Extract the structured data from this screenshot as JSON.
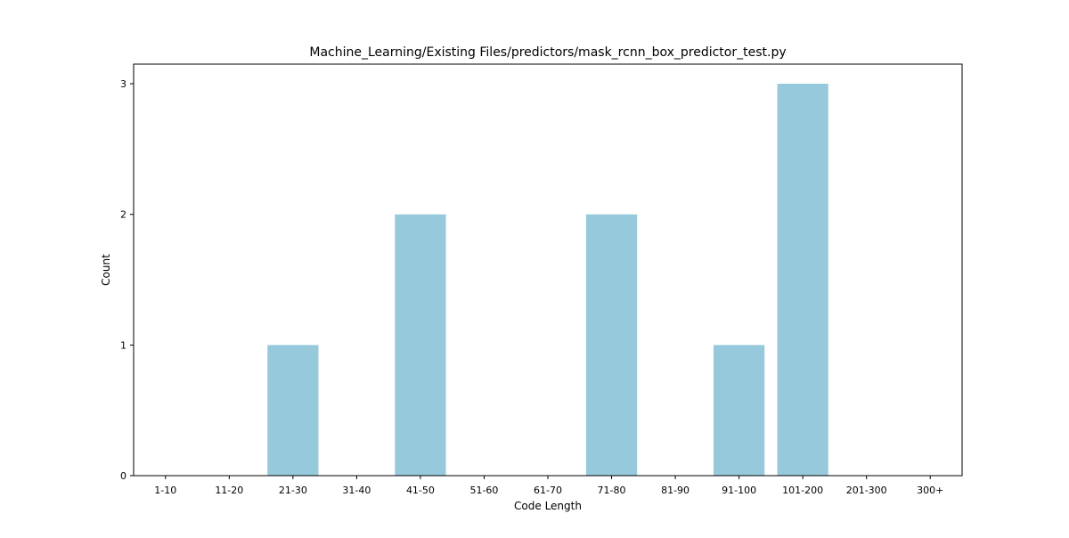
{
  "chart_data": {
    "type": "bar",
    "title": "Machine_Learning/Existing Files/predictors/mask_rcnn_box_predictor_test.py",
    "xlabel": "Code Length",
    "ylabel": "Count",
    "categories": [
      "1-10",
      "11-20",
      "21-30",
      "31-40",
      "41-50",
      "51-60",
      "61-70",
      "71-80",
      "81-90",
      "91-100",
      "101-200",
      "201-300",
      "300+"
    ],
    "values": [
      0,
      0,
      1,
      0,
      2,
      0,
      0,
      2,
      0,
      1,
      3,
      0,
      0
    ],
    "yticks": [
      0,
      1,
      2,
      3
    ],
    "ylim": [
      0,
      3.15
    ],
    "grid": false,
    "bar_color": "#96c9dc"
  }
}
